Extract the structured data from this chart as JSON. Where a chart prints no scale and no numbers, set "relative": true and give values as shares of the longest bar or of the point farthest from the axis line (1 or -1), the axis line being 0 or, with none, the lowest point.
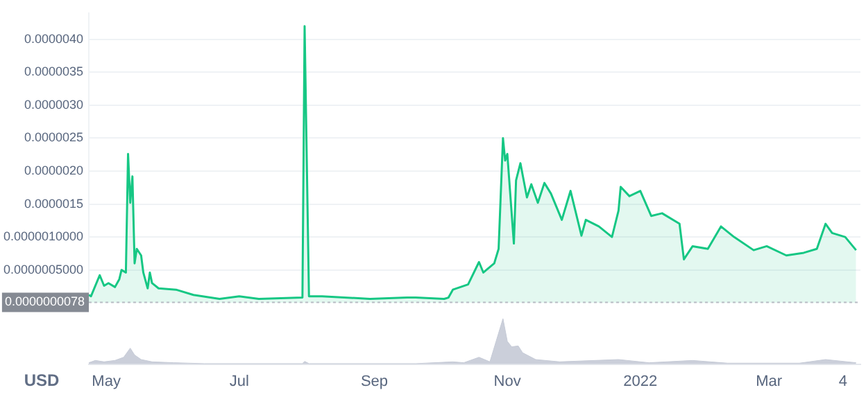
{
  "chart_data": [
    {
      "type": "area",
      "xlim": [
        "2021-04-23",
        "2022-04-12"
      ],
      "ylim": [
        0,
        4.4e-06
      ],
      "yticks": [
        {
          "value": 5e-07,
          "label": "0.0000005000"
        },
        {
          "value": 1e-06,
          "label": "0.0000010000"
        },
        {
          "value": 1.5e-06,
          "label": "0.0000015"
        },
        {
          "value": 2e-06,
          "label": "0.0000020"
        },
        {
          "value": 2.5e-06,
          "label": "0.0000025"
        },
        {
          "value": 3e-06,
          "label": "0.0000030"
        },
        {
          "value": 3.5e-06,
          "label": "0.0000035"
        },
        {
          "value": 4e-06,
          "label": "0.0000040"
        }
      ],
      "tick_labels": "y",
      "grid": "y",
      "legend": false,
      "ref_lines": [
        {
          "axis": "y",
          "value": 7.8e-09,
          "label": "0.0000000078",
          "color": "#b8bcc4",
          "line_style": "dotted"
        }
      ],
      "series": [
        {
          "color": "#16c784",
          "x": [
            "2021-04-23",
            "2021-04-24",
            "2021-04-28",
            "2021-04-30",
            "2021-05-02",
            "2021-05-05",
            "2021-05-07",
            "2021-05-08",
            "2021-05-10",
            "2021-05-11",
            "2021-05-12",
            "2021-05-13",
            "2021-05-14",
            "2021-05-15",
            "2021-05-17",
            "2021-05-18",
            "2021-05-20",
            "2021-05-21",
            "2021-05-22",
            "2021-05-25",
            "2021-06-02",
            "2021-06-10",
            "2021-06-22",
            "2021-07-01",
            "2021-07-10",
            "2021-07-30",
            "2021-07-31",
            "2021-08-02",
            "2021-08-08",
            "2021-08-30",
            "2021-09-16",
            "2021-09-20",
            "2021-10-03",
            "2021-10-05",
            "2021-10-07",
            "2021-10-14",
            "2021-10-19",
            "2021-10-21",
            "2021-10-26",
            "2021-10-28",
            "2021-10-30",
            "2021-10-31",
            "2021-11-01",
            "2021-11-04",
            "2021-11-05",
            "2021-11-07",
            "2021-11-10",
            "2021-11-12",
            "2021-11-15",
            "2021-11-18",
            "2021-11-21",
            "2021-11-26",
            "2021-11-30",
            "2021-12-05",
            "2021-12-07",
            "2021-12-13",
            "2021-12-19",
            "2021-12-22",
            "2021-12-23",
            "2021-12-27",
            "2022-01-01",
            "2022-01-06",
            "2022-01-11",
            "2022-01-19",
            "2022-01-21",
            "2022-01-25",
            "2022-02-01",
            "2022-02-07",
            "2022-02-13",
            "2022-02-22",
            "2022-02-28",
            "2022-03-09",
            "2022-03-17",
            "2022-03-23",
            "2022-03-27",
            "2022-03-30",
            "2022-04-05",
            "2022-04-10"
          ],
          "values": [
            1.2e-07,
            1e-07,
            4.2e-07,
            2.6e-07,
            3e-07,
            2.4e-07,
            3.6e-07,
            5e-07,
            4.6e-07,
            2.26e-06,
            1.52e-06,
            1.92e-06,
            6e-07,
            8.2e-07,
            7.2e-07,
            4.6e-07,
            2.2e-07,
            4.6e-07,
            3e-07,
            2.2e-07,
            2e-07,
            1.2e-07,
            6e-08,
            1e-07,
            6e-08,
            8e-08,
            4.2e-06,
            1e-07,
            1e-07,
            6e-08,
            8e-08,
            8e-08,
            6e-08,
            8e-08,
            2e-07,
            2.8e-07,
            6.2e-07,
            4.6e-07,
            6e-07,
            8.2e-07,
            2.5e-06,
            2.16e-06,
            2.26e-06,
            9e-07,
            1.86e-06,
            2.12e-06,
            1.6e-06,
            1.8e-06,
            1.52e-06,
            1.82e-06,
            1.66e-06,
            1.26e-06,
            1.7e-06,
            1.02e-06,
            1.26e-06,
            1.16e-06,
            1e-06,
            1.4e-06,
            1.76e-06,
            1.62e-06,
            1.7e-06,
            1.32e-06,
            1.36e-06,
            1.2e-06,
            6.6e-07,
            8.6e-07,
            8.2e-07,
            1.16e-06,
            1e-06,
            8e-07,
            8.6e-07,
            7.2e-07,
            7.6e-07,
            8.2e-07,
            1.2e-06,
            1.06e-06,
            1e-06,
            8e-07
          ]
        }
      ]
    },
    {
      "type": "area",
      "relative": true,
      "xlim": [
        "2021-04-23",
        "2022-04-12"
      ],
      "xticks": [
        {
          "value": "2021-05-01",
          "label": "May"
        },
        {
          "value": "2021-07-01",
          "label": "Jul"
        },
        {
          "value": "2021-09-01",
          "label": "Sep"
        },
        {
          "value": "2021-11-01",
          "label": "Nov"
        },
        {
          "value": "2022-01-01",
          "label": "2022"
        },
        {
          "value": "2022-03-01",
          "label": "Mar"
        },
        {
          "value": "2022-04-04",
          "label": "4"
        }
      ],
      "tick_labels": "x",
      "legend": false,
      "annotations": [
        "USD"
      ],
      "series": [
        {
          "color": "#c5cad6",
          "x": [
            "2021-04-23",
            "2021-04-26",
            "2021-04-30",
            "2021-05-05",
            "2021-05-09",
            "2021-05-12",
            "2021-05-14",
            "2021-05-17",
            "2021-05-22",
            "2021-06-01",
            "2021-06-15",
            "2021-07-30",
            "2021-07-31",
            "2021-08-02",
            "2021-09-20",
            "2021-10-07",
            "2021-10-12",
            "2021-10-19",
            "2021-10-24",
            "2021-10-30",
            "2021-11-01",
            "2021-11-03",
            "2021-11-06",
            "2021-11-08",
            "2021-11-14",
            "2021-11-25",
            "2021-12-22",
            "2022-01-05",
            "2022-01-25",
            "2022-02-10",
            "2022-03-15",
            "2022-03-27",
            "2022-04-10"
          ],
          "values": [
            0.03,
            0.08,
            0.05,
            0.08,
            0.15,
            0.35,
            0.2,
            0.1,
            0.05,
            0.03,
            0.01,
            0.01,
            0.06,
            0.01,
            0.01,
            0.05,
            0.03,
            0.15,
            0.05,
            1,
            0.5,
            0.38,
            0.4,
            0.25,
            0.1,
            0.05,
            0.1,
            0.03,
            0.08,
            0.02,
            0.02,
            0.1,
            0.03
          ]
        }
      ]
    }
  ]
}
